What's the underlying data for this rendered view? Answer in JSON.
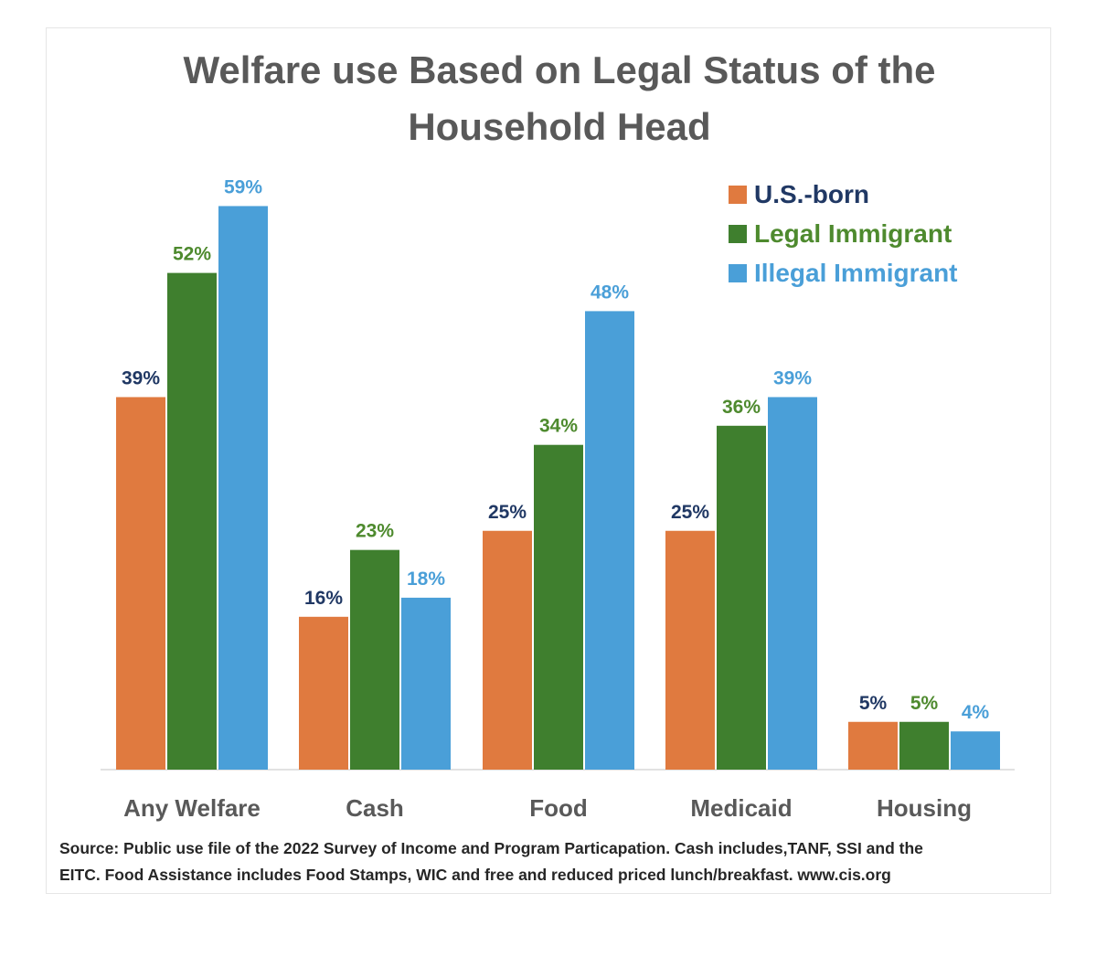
{
  "chart_data": {
    "type": "bar",
    "title_lines": [
      "Welfare use Based on Legal Status of the",
      "Household Head"
    ],
    "categories": [
      "Any Welfare",
      "Cash",
      "Food",
      "Medicaid",
      "Housing"
    ],
    "series": [
      {
        "name": "U.S.-born",
        "color": "#E07A3F",
        "label_color": "#203864",
        "values": [
          39,
          16,
          25,
          25,
          5
        ],
        "labels": [
          "39%",
          "16%",
          "25%",
          "25%",
          "5%"
        ]
      },
      {
        "name": "Legal Immigrant",
        "color": "#3F7F2E",
        "label_color": "#4E8A2E",
        "values": [
          52,
          23,
          34,
          36,
          5
        ],
        "labels": [
          "52%",
          "23%",
          "34%",
          "36%",
          "5%"
        ]
      },
      {
        "name": "Illegal Immigrant",
        "color": "#4A9FD8",
        "label_color": "#4A9FD8",
        "values": [
          59,
          18,
          48,
          39,
          4
        ],
        "labels": [
          "59%",
          "18%",
          "48%",
          "39%",
          "4%"
        ]
      }
    ],
    "ylim": [
      0,
      70
    ],
    "legend_position": "top-right",
    "grid": false
  },
  "footer": {
    "source_line1": "Source: Public use file of the 2022 Survey of Income and Program Particapation.  Cash includes,TANF, SSI and the",
    "source_line2": "EITC.  Food Assistance includes Food Stamps, WIC and free and reduced priced lunch/breakfast.  www.cis.org"
  }
}
